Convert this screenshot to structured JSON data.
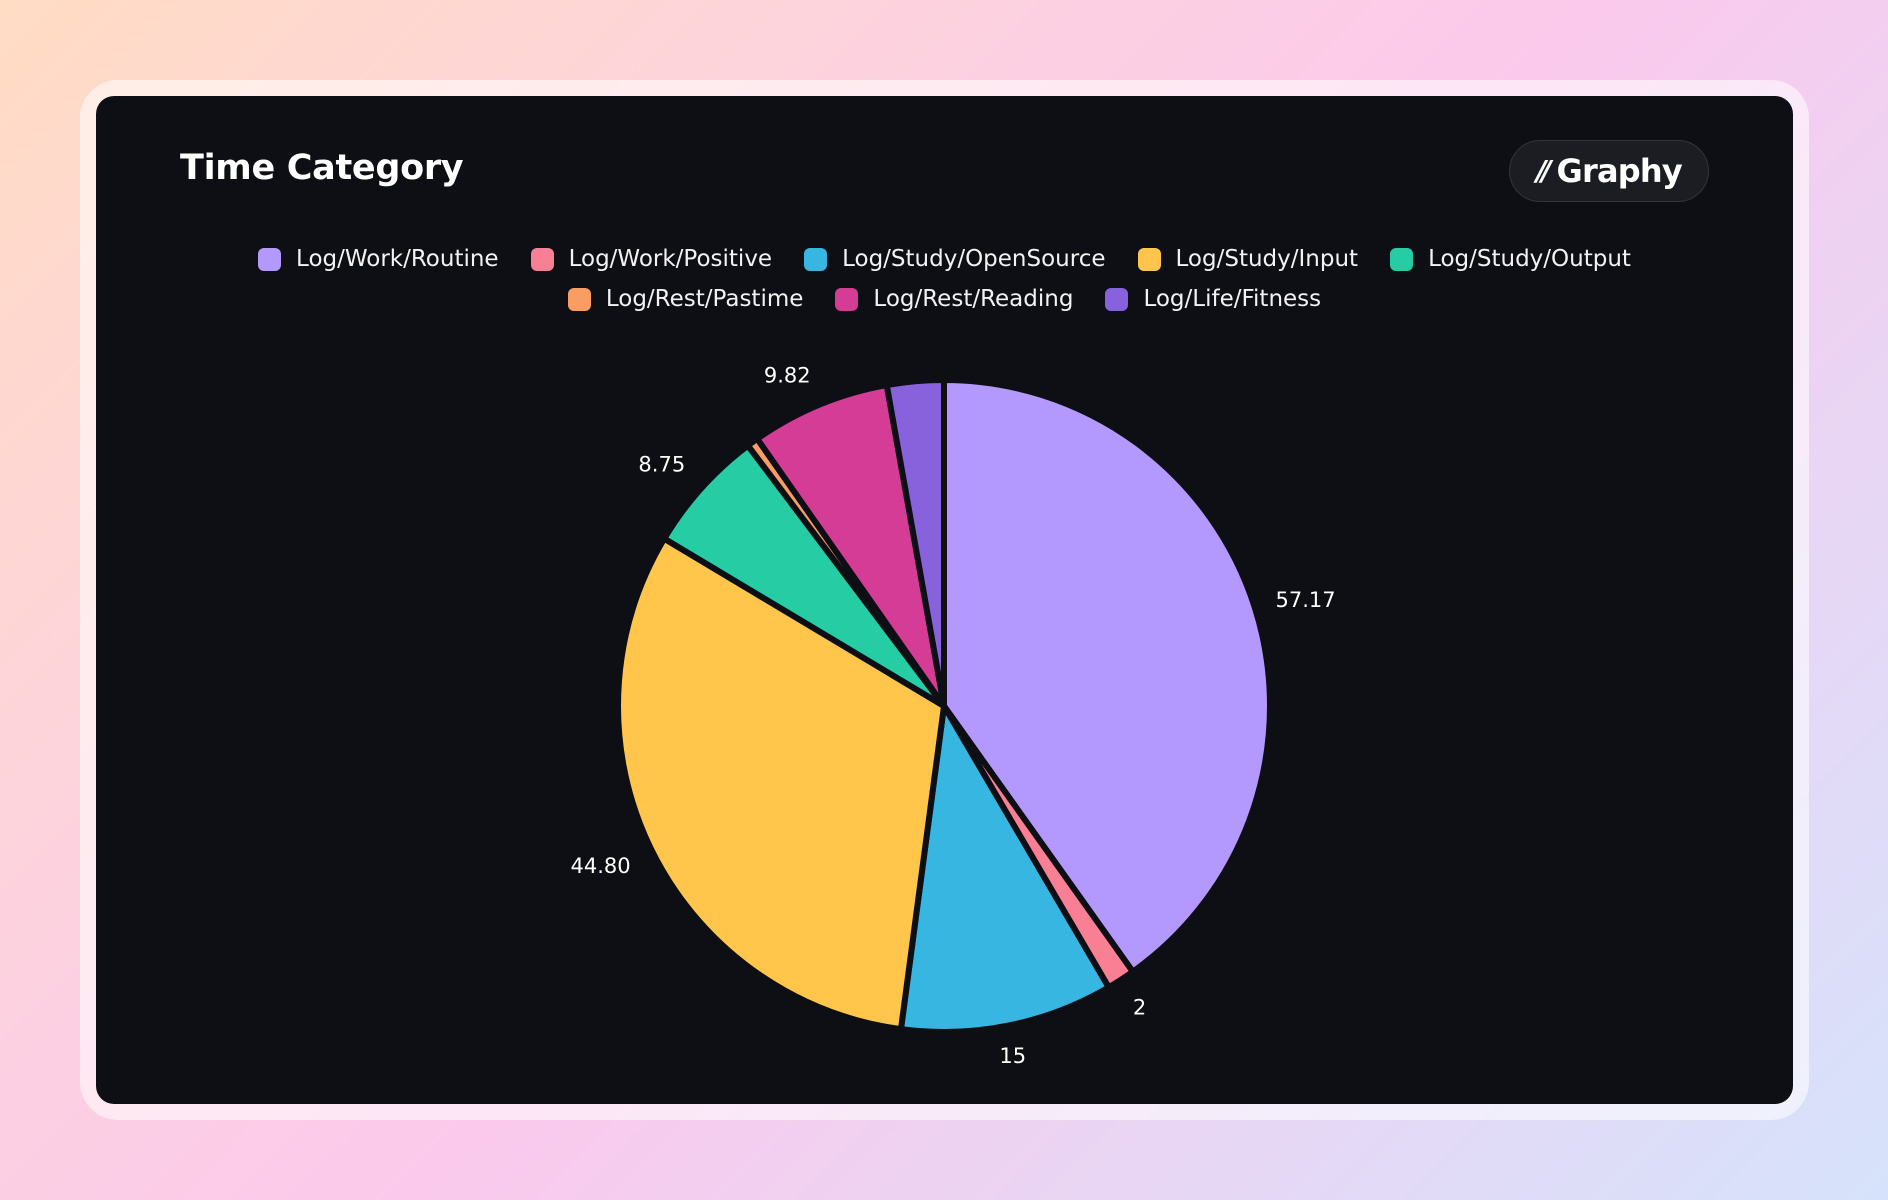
{
  "card": {
    "title": "Time Category",
    "brand": {
      "name": "Graphy",
      "mark": "//",
      "icon": "graphy-logo-icon"
    }
  },
  "chart_data": {
    "type": "pie",
    "title": "Time Category",
    "legend_position": "top",
    "categories": [
      "Log/Work/Routine",
      "Log/Work/Positive",
      "Log/Study/OpenSource",
      "Log/Study/Input",
      "Log/Study/Output",
      "Log/Rest/Pastime",
      "Log/Rest/Reading",
      "Log/Life/Fitness"
    ],
    "values": [
      57.17,
      2,
      15,
      44.8,
      8.75,
      0.8,
      9.82,
      4
    ],
    "value_labels": [
      "57.17",
      "2",
      "15",
      "44.80",
      "8.75",
      "",
      "9.82",
      ""
    ],
    "colors": [
      "#b399fd",
      "#f87f94",
      "#37b6e1",
      "#ffc64b",
      "#25cca4",
      "#fa9d62",
      "#d53c96",
      "#8861dc"
    ]
  }
}
